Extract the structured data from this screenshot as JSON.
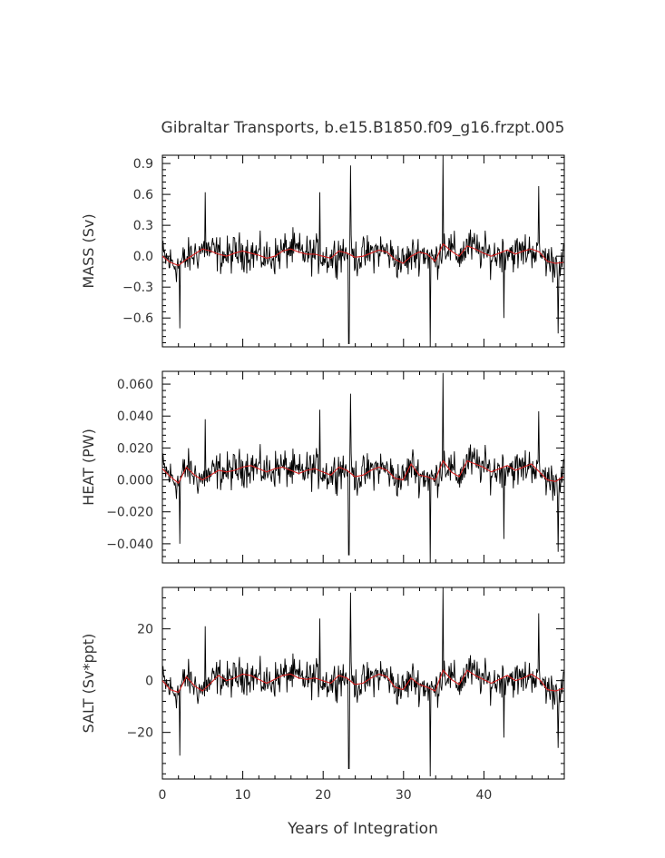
{
  "chart_data": {
    "type": "line",
    "title": "Gibraltar Transports, b.e15.B1850.f09_g16.frzpt.005",
    "xlabel": "Years of Integration",
    "xlim": [
      0,
      50
    ],
    "xticks": [
      0,
      10,
      20,
      30,
      40
    ],
    "xtick_labels": [
      "0",
      "10",
      "20",
      "30",
      "40"
    ],
    "panels": [
      {
        "ylabel": "MASS (Sv)",
        "ylim": [
          -0.88,
          0.98
        ],
        "yticks": [
          -0.6,
          -0.3,
          0.0,
          0.3,
          0.6,
          0.9
        ],
        "ytick_labels": [
          "−0.6",
          "−0.3",
          "0.0",
          "0.3",
          "0.6",
          "0.9"
        ],
        "amplitude": 0.17,
        "spikes": [
          [
            23.2,
            -0.85
          ],
          [
            23.4,
            0.88
          ],
          [
            33.3,
            -0.9
          ],
          [
            34.9,
            1.0
          ],
          [
            2.2,
            -0.7
          ],
          [
            49.2,
            -0.75
          ],
          [
            19.6,
            0.62
          ],
          [
            46.8,
            0.68
          ],
          [
            5.3,
            0.62
          ],
          [
            42.5,
            -0.6
          ]
        ],
        "series": [
          {
            "name": "",
            "color": "#000000",
            "kind": "raw"
          },
          {
            "name": "",
            "color": "#d62020",
            "kind": "smoothed",
            "values": [
              0.0,
              -0.06,
              -0.09,
              -0.03,
              0.02,
              0.07,
              0.05,
              0.02,
              0.0,
              0.03,
              0.05,
              0.03,
              0.01,
              -0.02,
              0.0,
              0.05,
              0.07,
              0.04,
              0.02,
              0.02,
              0.0,
              -0.02,
              0.05,
              0.03,
              -0.01,
              0.0,
              0.03,
              0.06,
              0.04,
              -0.03,
              -0.07,
              0.0,
              0.04,
              0.02,
              -0.05,
              0.12,
              0.05,
              0.0,
              0.1,
              0.07,
              0.03,
              0.0,
              0.03,
              0.06,
              0.02,
              0.05,
              0.07,
              0.04,
              -0.05,
              -0.07,
              -0.06
            ]
          }
        ]
      },
      {
        "ylabel": "HEAT (PW)",
        "ylim": [
          -0.052,
          0.068
        ],
        "yticks": [
          -0.04,
          -0.02,
          0.0,
          0.02,
          0.04,
          0.06
        ],
        "ytick_labels": [
          "−0.040",
          "−0.020",
          "0.000",
          "0.020",
          "0.040",
          "0.060"
        ],
        "amplitude": 0.011,
        "spikes": [
          [
            23.2,
            -0.047
          ],
          [
            23.4,
            0.054
          ],
          [
            33.3,
            -0.052
          ],
          [
            34.9,
            0.067
          ],
          [
            2.2,
            -0.04
          ],
          [
            49.2,
            -0.045
          ],
          [
            19.6,
            0.044
          ],
          [
            46.8,
            0.043
          ],
          [
            5.3,
            0.038
          ],
          [
            42.5,
            -0.037
          ]
        ],
        "series": [
          {
            "name": "",
            "color": "#000000",
            "kind": "raw"
          },
          {
            "name": "",
            "color": "#d62020",
            "kind": "smoothed",
            "values": [
              0.007,
              0.002,
              -0.002,
              0.008,
              0.003,
              0.0,
              0.003,
              0.006,
              0.005,
              0.006,
              0.008,
              0.009,
              0.007,
              0.005,
              0.007,
              0.008,
              0.006,
              0.004,
              0.006,
              0.007,
              0.005,
              0.003,
              0.008,
              0.006,
              0.002,
              0.003,
              0.006,
              0.008,
              0.006,
              0.001,
              0.0,
              0.01,
              0.003,
              0.002,
              0.0,
              0.012,
              0.005,
              0.002,
              0.012,
              0.01,
              0.008,
              0.005,
              0.007,
              0.009,
              0.006,
              0.008,
              0.01,
              0.005,
              0.0,
              -0.001,
              0.002
            ]
          }
        ]
      },
      {
        "ylabel": "SALT (Sv*ppt)",
        "ylim": [
          -38,
          36
        ],
        "yticks": [
          -20,
          0,
          20
        ],
        "ytick_labels": [
          "−20",
          "0",
          "20"
        ],
        "amplitude": 6.5,
        "spikes": [
          [
            23.2,
            -34
          ],
          [
            23.4,
            34
          ],
          [
            33.3,
            -37
          ],
          [
            34.9,
            36
          ],
          [
            2.2,
            -29
          ],
          [
            49.2,
            -26
          ],
          [
            19.6,
            24
          ],
          [
            46.8,
            26
          ],
          [
            5.3,
            21
          ],
          [
            42.5,
            -22
          ]
        ],
        "series": [
          {
            "name": "",
            "color": "#000000",
            "kind": "raw"
          },
          {
            "name": "",
            "color": "#d62020",
            "kind": "smoothed",
            "values": [
              0.0,
              -3.5,
              -4.5,
              1.5,
              -2.0,
              -4.0,
              -1.0,
              2.0,
              0.0,
              1.0,
              2.5,
              2.0,
              0.5,
              -1.0,
              0.5,
              2.0,
              2.5,
              1.0,
              0.5,
              1.0,
              0.0,
              -1.0,
              2.0,
              1.0,
              -1.5,
              -1.0,
              1.0,
              2.5,
              1.5,
              -2.5,
              -3.5,
              1.0,
              -1.5,
              -2.5,
              -4.0,
              4.0,
              0.5,
              -1.5,
              4.0,
              2.0,
              0.5,
              -1.0,
              0.5,
              2.0,
              0.0,
              1.0,
              2.5,
              0.5,
              -3.5,
              -4.0,
              -3.0
            ]
          }
        ]
      }
    ]
  }
}
